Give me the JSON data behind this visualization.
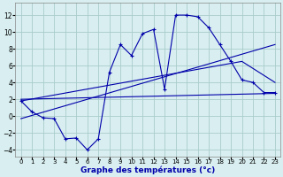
{
  "xlabel": "Graphe des températures (°c)",
  "background_color": "#d8eef0",
  "grid_color": "#aacccc",
  "line_color": "#0000aa",
  "xlim": [
    -0.5,
    23.5
  ],
  "ylim": [
    -4.8,
    13.5
  ],
  "xticks": [
    0,
    1,
    2,
    3,
    4,
    5,
    6,
    7,
    8,
    9,
    10,
    11,
    12,
    13,
    14,
    15,
    16,
    17,
    18,
    19,
    20,
    21,
    22,
    23
  ],
  "yticks": [
    -4,
    -2,
    0,
    2,
    4,
    6,
    8,
    10,
    12
  ],
  "curve1_x": [
    0,
    1,
    2,
    3,
    4,
    5,
    6,
    7,
    8,
    9,
    10,
    11,
    12,
    13,
    14,
    15,
    16,
    17,
    18,
    19,
    20,
    21,
    22,
    23
  ],
  "curve1_y": [
    1.8,
    0.5,
    -0.2,
    -0.3,
    -2.7,
    -2.6,
    -4.0,
    -2.7,
    5.2,
    8.5,
    7.2,
    9.8,
    10.3,
    3.2,
    12.0,
    12.0,
    11.8,
    10.5,
    8.5,
    6.5,
    4.3,
    4.0,
    2.8,
    2.8
  ],
  "line1_x": [
    0,
    23
  ],
  "line1_y": [
    2.0,
    2.7
  ],
  "line2_x": [
    0,
    20,
    23
  ],
  "line2_y": [
    1.8,
    6.5,
    4.0
  ],
  "line3_x": [
    0,
    23
  ],
  "line3_y": [
    -0.3,
    8.5
  ]
}
